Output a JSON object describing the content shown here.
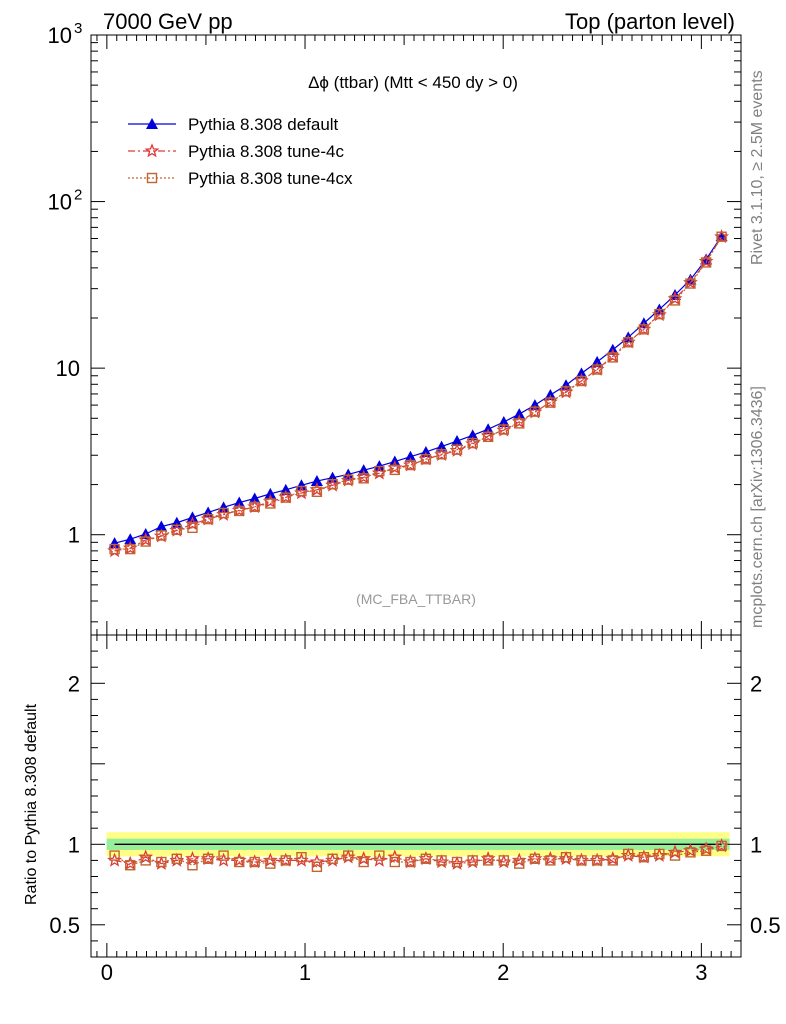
{
  "header": {
    "left": "7000 GeV pp",
    "right": "Top (parton level)"
  },
  "side_labels": {
    "top": "Rivet 3.1.10, ≥ 2.5M events",
    "bottom": "mcplots.cern.ch [arXiv:1306.3436]"
  },
  "analysis_tag": "(MC_FBA_TTBAR)",
  "colors": {
    "default": "#0000dd",
    "tune4c": "#e03838",
    "tune4cx": "#c06530",
    "band_yellow": "#ffff88",
    "band_green": "#99ee99"
  },
  "chart_data": [
    {
      "type": "line",
      "title": "Δϕ (ttbar) (Mtt < 450 dy > 0)",
      "xlabel": "",
      "ylabel": "",
      "yscale": "log",
      "xlim": [
        -0.08,
        3.2
      ],
      "ylim": [
        0.25,
        1000
      ],
      "x_ticks": [
        0,
        1,
        2,
        3
      ],
      "y_ticks": [
        {
          "value": 1,
          "label": "1"
        },
        {
          "value": 10,
          "label": "10"
        },
        {
          "value": 100,
          "label": "10",
          "sup": "2"
        },
        {
          "value": 1000,
          "label": "10",
          "sup": "3"
        }
      ],
      "legend_position": "top-left",
      "x": [
        0.039,
        0.118,
        0.196,
        0.275,
        0.353,
        0.432,
        0.511,
        0.589,
        0.668,
        0.746,
        0.825,
        0.903,
        0.982,
        1.06,
        1.139,
        1.218,
        1.296,
        1.375,
        1.453,
        1.532,
        1.61,
        1.689,
        1.767,
        1.846,
        1.924,
        2.003,
        2.081,
        2.16,
        2.238,
        2.317,
        2.395,
        2.474,
        2.553,
        2.631,
        2.71,
        2.788,
        2.867,
        2.945,
        3.024,
        3.102
      ],
      "series": [
        {
          "name": "Pythia 8.308 default",
          "marker": "triangle",
          "line": "solid",
          "color_key": "default",
          "values": [
            0.89,
            0.94,
            1.01,
            1.12,
            1.18,
            1.27,
            1.36,
            1.46,
            1.56,
            1.65,
            1.76,
            1.86,
            1.98,
            2.1,
            2.2,
            2.3,
            2.44,
            2.58,
            2.75,
            2.94,
            3.14,
            3.38,
            3.65,
            3.95,
            4.3,
            4.75,
            5.3,
            6.0,
            6.9,
            7.9,
            9.3,
            10.9,
            12.9,
            15.3,
            18.6,
            22.5,
            27.5,
            34.0,
            45.0,
            62.0
          ]
        },
        {
          "name": "Pythia 8.308 tune-4c",
          "marker": "star",
          "line": "dashdot",
          "color_key": "tune4c",
          "values": [
            0.8,
            0.83,
            0.93,
            0.98,
            1.06,
            1.16,
            1.24,
            1.32,
            1.4,
            1.47,
            1.58,
            1.68,
            1.78,
            1.86,
            1.98,
            2.12,
            2.21,
            2.34,
            2.52,
            2.62,
            2.84,
            3.02,
            3.2,
            3.51,
            3.91,
            4.24,
            4.76,
            5.44,
            6.25,
            7.17,
            8.39,
            9.81,
            11.8,
            14.3,
            17.1,
            20.9,
            26.1,
            32.6,
            43.7,
            61.4
          ]
        },
        {
          "name": "Pythia 8.308 tune-4cx",
          "marker": "square",
          "line": "dotted",
          "color_key": "tune4cx",
          "values": [
            0.82,
            0.82,
            0.91,
            0.99,
            1.07,
            1.1,
            1.24,
            1.35,
            1.39,
            1.47,
            1.54,
            1.67,
            1.83,
            1.81,
            2.01,
            2.14,
            2.18,
            2.41,
            2.45,
            2.62,
            2.84,
            3.04,
            3.24,
            3.55,
            3.87,
            4.28,
            4.66,
            5.48,
            6.21,
            7.26,
            8.37,
            9.81,
            11.6,
            14.3,
            17.1,
            21.1,
            25.5,
            32.2,
            43.1,
            61.5
          ]
        }
      ]
    },
    {
      "type": "line",
      "title": "",
      "xlabel": "",
      "ylabel": "Ratio to Pythia 8.308 default",
      "xlim": [
        -0.08,
        3.2
      ],
      "ylim": [
        0.3,
        2.3
      ],
      "y_ticks": [
        {
          "value": 0.5,
          "label": "0.5"
        },
        {
          "value": 1,
          "label": "1"
        },
        {
          "value": 2,
          "label": "2"
        }
      ],
      "band": {
        "yellow_halfwidth": 0.075,
        "green_halfwidth": 0.035
      },
      "series": [
        {
          "name": "Pythia 8.308 default",
          "values": [
            1,
            1,
            1,
            1,
            1,
            1,
            1,
            1,
            1,
            1,
            1,
            1,
            1,
            1,
            1,
            1,
            1,
            1,
            1,
            1,
            1,
            1,
            1,
            1,
            1,
            1,
            1,
            1,
            1,
            1,
            1,
            1,
            1,
            1,
            1,
            1,
            1,
            1,
            1,
            1
          ]
        },
        {
          "name": "Pythia 8.308 tune-4c",
          "values": [
            0.9,
            0.88,
            0.92,
            0.88,
            0.9,
            0.91,
            0.91,
            0.9,
            0.9,
            0.89,
            0.9,
            0.9,
            0.9,
            0.89,
            0.9,
            0.92,
            0.91,
            0.9,
            0.92,
            0.89,
            0.91,
            0.89,
            0.88,
            0.89,
            0.91,
            0.89,
            0.9,
            0.91,
            0.91,
            0.91,
            0.9,
            0.9,
            0.91,
            0.93,
            0.92,
            0.93,
            0.95,
            0.96,
            0.97,
            0.99
          ]
        },
        {
          "name": "Pythia 8.308 tune-4cx",
          "values": [
            0.93,
            0.87,
            0.9,
            0.89,
            0.91,
            0.87,
            0.91,
            0.93,
            0.89,
            0.89,
            0.88,
            0.9,
            0.92,
            0.86,
            0.91,
            0.93,
            0.89,
            0.93,
            0.89,
            0.89,
            0.91,
            0.9,
            0.89,
            0.9,
            0.9,
            0.9,
            0.88,
            0.91,
            0.9,
            0.92,
            0.9,
            0.9,
            0.9,
            0.94,
            0.92,
            0.94,
            0.93,
            0.95,
            0.96,
            0.99
          ]
        }
      ]
    }
  ]
}
